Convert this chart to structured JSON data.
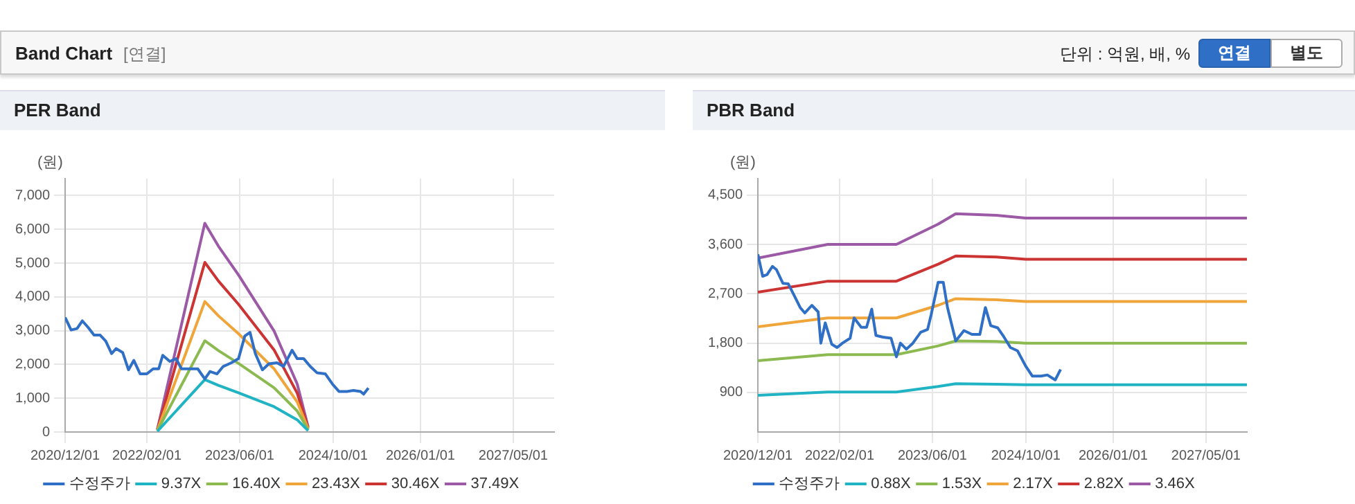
{
  "chart_data": [
    {
      "type": "other",
      "title": "Band Chart",
      "annotations": [
        "[연결]",
        "단위 : 억원, 배, %",
        "연결",
        "별도"
      ]
    },
    {
      "type": "line",
      "title": "PER Band",
      "ylabel": "(원)",
      "legend": "bottom",
      "grid": true,
      "marker": "none",
      "line_style": "solid",
      "xlim": [
        "2020-12-01",
        "2027-12-01"
      ],
      "xticks": [
        {
          "value": "2020-12-01",
          "label": "2020/12/01"
        },
        {
          "value": "2022-02-01",
          "label": "2022/02/01"
        },
        {
          "value": "2023-06-01",
          "label": "2023/06/01"
        },
        {
          "value": "2024-10-01",
          "label": "2024/10/01"
        },
        {
          "value": "2026-01-01",
          "label": "2026/01/01"
        },
        {
          "value": "2027-05-01",
          "label": "2027/05/01"
        }
      ],
      "ylim": [
        0,
        7500
      ],
      "yticks": [
        {
          "value": 0,
          "label": "0"
        },
        {
          "value": 1000,
          "label": "1,000"
        },
        {
          "value": 2000,
          "label": "2,000"
        },
        {
          "value": 3000,
          "label": "3,000"
        },
        {
          "value": 4000,
          "label": "4,000"
        },
        {
          "value": 5000,
          "label": "5,000"
        },
        {
          "value": 6000,
          "label": "6,000"
        },
        {
          "value": 7000,
          "label": "7,000"
        }
      ],
      "series": [
        {
          "name": "수정주가",
          "color": "#2f6fc6",
          "x": [
            "2020-12-01",
            "2021-01-01",
            "2021-02-01",
            "2021-03-01",
            "2021-04-01",
            "2021-05-01",
            "2021-06-01",
            "2021-07-01",
            "2021-08-01",
            "2021-08-24",
            "2021-09-28",
            "2021-10-28",
            "2021-11-25",
            "2021-12-28",
            "2022-02-01",
            "2022-03-06",
            "2022-04-04",
            "2022-04-25",
            "2022-06-01",
            "2022-07-04",
            "2022-08-01",
            "2022-09-07",
            "2022-10-25",
            "2022-12-01",
            "2022-12-28",
            "2023-02-03",
            "2023-03-07",
            "2023-04-19",
            "2023-05-26",
            "2023-06-28",
            "2023-07-25",
            "2023-08-22",
            "2023-09-28",
            "2023-11-01",
            "2023-12-13",
            "2024-01-16",
            "2024-03-01",
            "2024-03-28",
            "2024-05-01",
            "2024-06-04",
            "2024-07-10",
            "2024-08-22",
            "2024-09-28",
            "2024-11-01",
            "2024-12-13",
            "2025-01-16",
            "2025-02-22",
            "2025-03-10",
            "2025-04-04"
          ],
          "values": [
            3390,
            3020,
            3060,
            3290,
            3090,
            2870,
            2870,
            2690,
            2320,
            2470,
            2350,
            1840,
            2120,
            1720,
            1720,
            1870,
            1870,
            2270,
            2090,
            2170,
            1870,
            1870,
            1870,
            1570,
            1790,
            1720,
            1940,
            2050,
            2170,
            2840,
            2950,
            2320,
            1840,
            2020,
            2050,
            1940,
            2420,
            2170,
            2170,
            1940,
            1750,
            1720,
            1420,
            1200,
            1200,
            1230,
            1200,
            1120,
            1300
          ]
        },
        {
          "name": "9.37X",
          "color": "#1fb3c4",
          "x": [
            "2022-03-28",
            "2022-12-01",
            "2023-02-10",
            "2023-05-26",
            "2023-11-28",
            "2024-03-28",
            "2024-05-24"
          ],
          "values": [
            20,
            1550,
            1380,
            1160,
            750,
            360,
            40
          ]
        },
        {
          "name": "16.40X",
          "color": "#8cba51",
          "x": [
            "2022-03-28",
            "2022-12-01",
            "2023-02-10",
            "2023-05-26",
            "2023-11-28",
            "2024-03-28",
            "2024-05-24"
          ],
          "values": [
            35,
            2700,
            2410,
            2030,
            1310,
            620,
            70
          ]
        },
        {
          "name": "23.43X",
          "color": "#f0a53a",
          "x": [
            "2022-03-28",
            "2022-12-01",
            "2023-02-10",
            "2023-05-26",
            "2023-11-28",
            "2024-03-28",
            "2024-05-24"
          ],
          "values": [
            50,
            3860,
            3440,
            2910,
            1870,
            890,
            90
          ]
        },
        {
          "name": "30.46X",
          "color": "#cc3333",
          "x": [
            "2022-03-28",
            "2022-12-01",
            "2023-02-10",
            "2023-05-26",
            "2023-11-28",
            "2024-03-28",
            "2024-05-24"
          ],
          "values": [
            65,
            5020,
            4470,
            3780,
            2430,
            1150,
            120
          ]
        },
        {
          "name": "37.49X",
          "color": "#9b59a6",
          "x": [
            "2022-03-28",
            "2022-12-01",
            "2023-02-10",
            "2023-05-26",
            "2023-11-28",
            "2024-03-28",
            "2024-05-24"
          ],
          "values": [
            80,
            6180,
            5500,
            4650,
            2990,
            1420,
            150
          ]
        }
      ]
    },
    {
      "type": "line",
      "title": "PBR Band",
      "ylabel": "(원)",
      "legend": "bottom",
      "grid": true,
      "marker": "none",
      "line_style": "solid",
      "xlim": [
        "2020-12-01",
        "2027-12-01"
      ],
      "xticks": [
        {
          "value": "2020-12-01",
          "label": "2020/12/01"
        },
        {
          "value": "2022-02-01",
          "label": "2022/02/01"
        },
        {
          "value": "2023-06-01",
          "label": "2023/06/01"
        },
        {
          "value": "2024-10-01",
          "label": "2024/10/01"
        },
        {
          "value": "2026-01-01",
          "label": "2026/01/01"
        },
        {
          "value": "2027-05-01",
          "label": "2027/05/01"
        }
      ],
      "ylim": [
        180,
        4800
      ],
      "yticks": [
        {
          "value": 900,
          "label": "900"
        },
        {
          "value": 1800,
          "label": "1,800"
        },
        {
          "value": 2700,
          "label": "2,700"
        },
        {
          "value": 3600,
          "label": "3,600"
        },
        {
          "value": 4500,
          "label": "4,500"
        }
      ],
      "series": [
        {
          "name": "수정주가",
          "color": "#2f6fc6",
          "x": [
            "2020-12-01",
            "2020-12-26",
            "2021-01-18",
            "2021-02-15",
            "2021-03-08",
            "2021-04-11",
            "2021-05-09",
            "2021-06-07",
            "2021-07-10",
            "2021-08-03",
            "2021-09-09",
            "2021-10-12",
            "2021-10-26",
            "2021-11-18",
            "2021-12-22",
            "2022-01-19",
            "2022-02-16",
            "2022-03-28",
            "2022-04-18",
            "2022-05-25",
            "2022-06-22",
            "2022-07-19",
            "2022-08-10",
            "2022-09-16",
            "2022-10-28",
            "2022-11-25",
            "2022-12-16",
            "2023-01-16",
            "2023-02-19",
            "2023-04-01",
            "2023-05-07",
            "2023-05-25",
            "2023-07-01",
            "2023-07-28",
            "2023-08-19",
            "2023-10-01",
            "2023-11-13",
            "2023-12-25",
            "2024-02-04",
            "2024-03-04",
            "2024-04-01",
            "2024-05-07",
            "2024-06-04",
            "2024-07-13",
            "2024-08-19",
            "2024-10-01",
            "2024-11-04",
            "2024-12-19",
            "2025-01-22",
            "2025-03-04",
            "2025-04-01"
          ],
          "values": [
            3420,
            3020,
            3050,
            3200,
            3140,
            2890,
            2880,
            2680,
            2450,
            2350,
            2490,
            2370,
            1800,
            2170,
            1780,
            1720,
            1800,
            1890,
            2260,
            2090,
            2090,
            2420,
            1940,
            1910,
            1890,
            1550,
            1800,
            1690,
            1800,
            2000,
            2050,
            2310,
            2910,
            2910,
            2450,
            1840,
            2030,
            1960,
            1960,
            2450,
            2120,
            2080,
            1940,
            1720,
            1660,
            1380,
            1200,
            1200,
            1220,
            1130,
            1320
          ]
        },
        {
          "name": "0.88X",
          "color": "#1fb3c4",
          "x": [
            "2020-12-01",
            "2021-12-01",
            "2022-11-25",
            "2023-07-01",
            "2023-10-01",
            "2024-05-01",
            "2024-10-01",
            "2027-12-01"
          ],
          "values": [
            850,
            910,
            910,
            1010,
            1060,
            1050,
            1040,
            1040
          ]
        },
        {
          "name": "1.53X",
          "color": "#8cba51",
          "x": [
            "2020-12-01",
            "2021-12-01",
            "2022-11-25",
            "2023-07-01",
            "2023-10-01",
            "2024-05-01",
            "2024-10-01",
            "2027-12-01"
          ],
          "values": [
            1480,
            1590,
            1590,
            1750,
            1840,
            1830,
            1800,
            1800
          ]
        },
        {
          "name": "2.17X",
          "color": "#f0a53a",
          "x": [
            "2020-12-01",
            "2021-12-01",
            "2022-11-25",
            "2023-07-01",
            "2023-10-01",
            "2024-05-01",
            "2024-10-01",
            "2027-12-01"
          ],
          "values": [
            2100,
            2260,
            2260,
            2490,
            2610,
            2590,
            2560,
            2560
          ]
        },
        {
          "name": "2.82X",
          "color": "#cc3333",
          "x": [
            "2020-12-01",
            "2021-12-01",
            "2022-11-25",
            "2023-07-01",
            "2023-10-01",
            "2024-05-01",
            "2024-10-01",
            "2027-12-01"
          ],
          "values": [
            2730,
            2930,
            2930,
            3240,
            3390,
            3370,
            3330,
            3330
          ]
        },
        {
          "name": "3.46X",
          "color": "#9b59a6",
          "x": [
            "2020-12-01",
            "2021-12-01",
            "2022-11-25",
            "2023-07-01",
            "2023-10-01",
            "2024-05-01",
            "2024-10-01",
            "2027-12-01"
          ],
          "values": [
            3350,
            3600,
            3600,
            3970,
            4160,
            4130,
            4080,
            4080
          ]
        }
      ]
    }
  ]
}
